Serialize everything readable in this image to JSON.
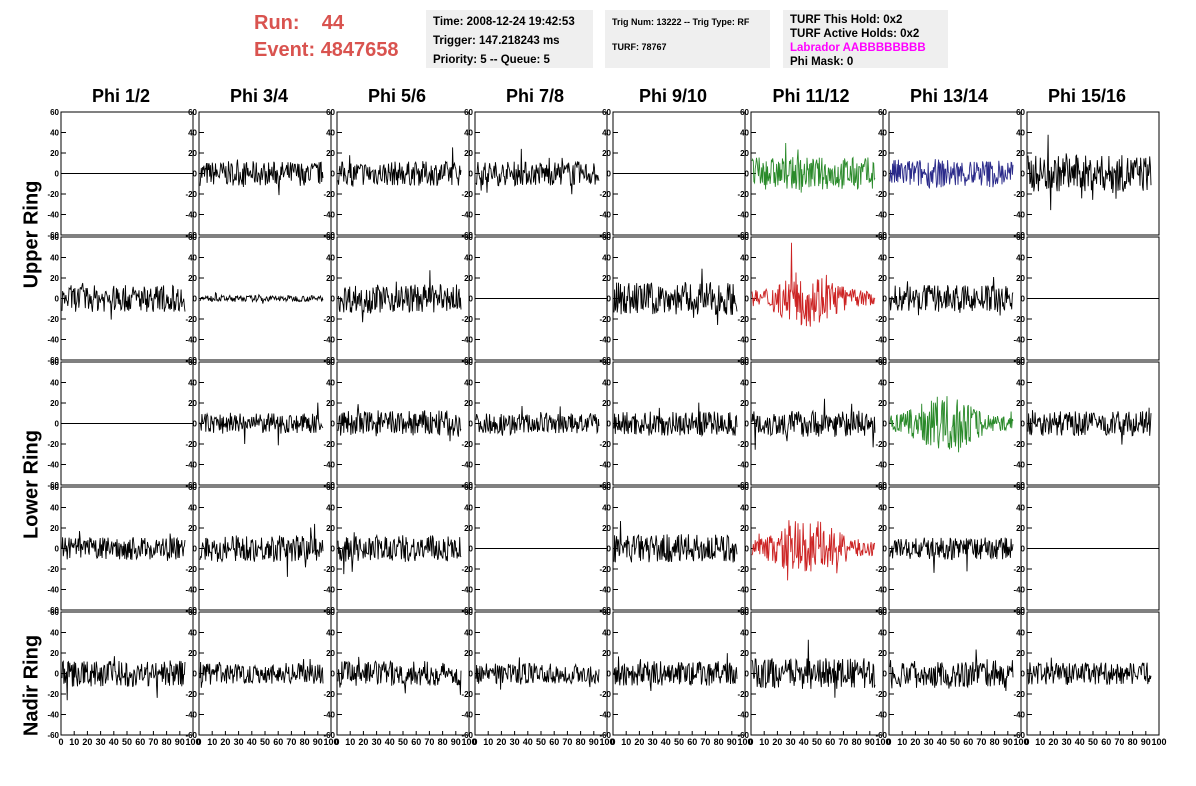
{
  "header": {
    "run_label": "Run:",
    "run_value": "44",
    "event_label": "Event:",
    "event_value": "4847658",
    "info1": [
      "Time: 2008-12-24 19:42:53",
      "Trigger: 147.218243 ms",
      "Priority: 5 -- Queue: 5"
    ],
    "info2": [
      "Trig Num: 13222 -- Trig Type: RF",
      "TURF: 78767"
    ],
    "info3": [
      "TURF This Hold: 0x2",
      "TURF Active Holds: 0x2",
      "Labrador AABBBBBBBB",
      "Phi Mask: 0"
    ],
    "labrador_color": "#ff00ff",
    "run_color": "#d9534f"
  },
  "columns": [
    "Phi 1/2",
    "Phi 3/4",
    "Phi 5/6",
    "Phi 7/8",
    "Phi 9/10",
    "Phi 11/12",
    "Phi 13/14",
    "Phi 15/16"
  ],
  "rings": [
    "Upper Ring",
    "Lower Ring",
    "Nadir Ring"
  ],
  "chart_data": {
    "type": "line",
    "x_ticks": [
      0,
      10,
      20,
      30,
      40,
      50,
      60,
      70,
      80,
      90,
      100
    ],
    "xlim": [
      0,
      100
    ],
    "y_ticks": [
      60,
      40,
      20,
      0,
      -20,
      -40,
      -60
    ],
    "ylim": [
      -60,
      60
    ],
    "row_ring": [
      "Upper Ring",
      "Upper Ring",
      "Lower Ring",
      "Lower Ring",
      "Nadir Ring"
    ],
    "panels": [
      [
        {
          "kind": "flat",
          "color": "#000000"
        },
        {
          "kind": "noise",
          "amp": 12,
          "color": "#000000"
        },
        {
          "kind": "noise",
          "amp": 12,
          "color": "#000000"
        },
        {
          "kind": "noise",
          "amp": 12,
          "color": "#000000"
        },
        {
          "kind": "flat",
          "color": "#000000"
        },
        {
          "kind": "noise",
          "amp": 16,
          "color": "#2a8a2a"
        },
        {
          "kind": "noise",
          "amp": 14,
          "color": "#2a2a8a"
        },
        {
          "kind": "noise",
          "amp": 18,
          "color": "#000000"
        }
      ],
      [
        {
          "kind": "noise",
          "amp": 13,
          "color": "#000000"
        },
        {
          "kind": "noise",
          "amp": 3,
          "color": "#000000"
        },
        {
          "kind": "noise",
          "amp": 14,
          "color": "#000000"
        },
        {
          "kind": "flat",
          "color": "#000000"
        },
        {
          "kind": "noise",
          "amp": 16,
          "color": "#000000"
        },
        {
          "kind": "pulse",
          "amp": 24,
          "color": "#cc2222"
        },
        {
          "kind": "noise",
          "amp": 13,
          "color": "#000000"
        },
        {
          "kind": "flat",
          "color": "#000000"
        }
      ],
      [
        {
          "kind": "flat",
          "color": "#000000"
        },
        {
          "kind": "noise",
          "amp": 10,
          "color": "#000000"
        },
        {
          "kind": "noise",
          "amp": 13,
          "color": "#000000"
        },
        {
          "kind": "noise",
          "amp": 10,
          "color": "#000000"
        },
        {
          "kind": "noise",
          "amp": 12,
          "color": "#000000"
        },
        {
          "kind": "noise",
          "amp": 13,
          "color": "#000000"
        },
        {
          "kind": "pulse",
          "amp": 24,
          "color": "#2a8a2a"
        },
        {
          "kind": "noise",
          "amp": 12,
          "color": "#000000"
        }
      ],
      [
        {
          "kind": "noise",
          "amp": 11,
          "color": "#000000"
        },
        {
          "kind": "noise",
          "amp": 13,
          "color": "#000000"
        },
        {
          "kind": "noise",
          "amp": 13,
          "color": "#000000"
        },
        {
          "kind": "flat",
          "color": "#000000"
        },
        {
          "kind": "noise",
          "amp": 14,
          "color": "#000000"
        },
        {
          "kind": "pulse",
          "amp": 26,
          "color": "#cc2222"
        },
        {
          "kind": "noise",
          "amp": 11,
          "color": "#000000"
        },
        {
          "kind": "flat",
          "color": "#000000"
        }
      ],
      [
        {
          "kind": "noise",
          "amp": 13,
          "color": "#000000"
        },
        {
          "kind": "noise",
          "amp": 10,
          "color": "#000000"
        },
        {
          "kind": "noise",
          "amp": 12,
          "color": "#000000"
        },
        {
          "kind": "noise",
          "amp": 10,
          "color": "#000000"
        },
        {
          "kind": "noise",
          "amp": 12,
          "color": "#000000"
        },
        {
          "kind": "noise",
          "amp": 15,
          "color": "#000000"
        },
        {
          "kind": "noise",
          "amp": 14,
          "color": "#000000"
        },
        {
          "kind": "noise",
          "amp": 11,
          "color": "#000000"
        }
      ]
    ]
  }
}
